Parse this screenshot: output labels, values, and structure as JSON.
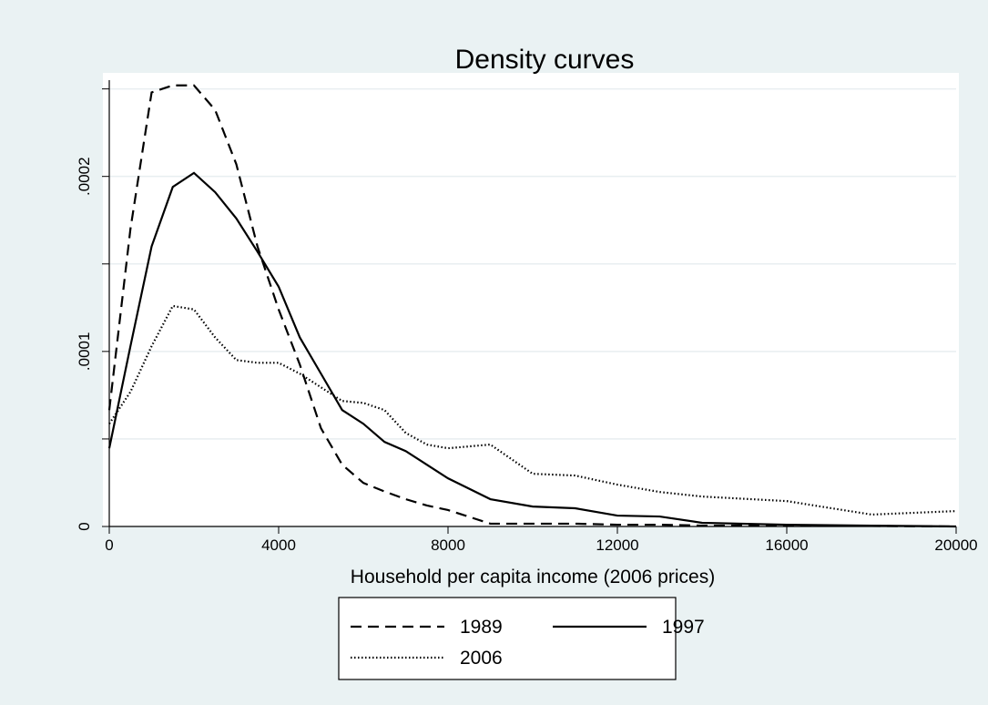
{
  "chart_data": {
    "type": "line",
    "title": "Density curves",
    "x_label": "Household per capita income (2006 prices)",
    "x": [
      0,
      500,
      1000,
      1500,
      2000,
      2500,
      3000,
      3500,
      4000,
      4500,
      5000,
      5500,
      6000,
      6500,
      7000,
      7500,
      8000,
      9000,
      10000,
      11000,
      12000,
      13000,
      14000,
      16000,
      18000,
      20000
    ],
    "series": [
      {
        "name": "1989",
        "color": "#000000",
        "dash": "dashed",
        "values": [
          6.65e-05,
          0.00017,
          0.000248,
          0.000252,
          0.000252,
          0.000238,
          0.000207,
          0.00016,
          0.000124,
          9.25e-05,
          5.61e-05,
          3.53e-05,
          2.49e-05,
          2e-05,
          1.56e-05,
          1.2e-05,
          9.4e-06,
          1.6e-06,
          1.6e-06,
          1.6e-06,
          1e-06,
          1e-06,
          5e-07,
          5e-07,
          3e-07,
          0
        ]
      },
      {
        "name": "1997",
        "color": "#000000",
        "dash": "solid",
        "values": [
          4.47e-05,
          0.000103,
          0.00016,
          0.000194,
          0.000202,
          0.000191,
          0.000176,
          0.000157,
          0.000137,
          0.000108,
          8.73e-05,
          6.65e-05,
          5.87e-05,
          4.83e-05,
          4.31e-05,
          3.53e-05,
          2.75e-05,
          1.56e-05,
          1.14e-05,
          1.04e-05,
          6.2e-06,
          5.7e-06,
          2.1e-06,
          1e-06,
          5e-07,
          0
        ]
      },
      {
        "name": "2006",
        "color": "#000000",
        "dash": "dotted",
        "values": [
          5.87e-05,
          7.69e-05,
          0.000103,
          0.000126,
          0.000124,
          0.000108,
          9.51e-05,
          9.35e-05,
          9.35e-05,
          8.73e-05,
          7.95e-05,
          7.17e-05,
          7.06e-05,
          6.65e-05,
          5.35e-05,
          4.68e-05,
          4.47e-05,
          4.68e-05,
          3.01e-05,
          2.91e-05,
          2.39e-05,
          1.97e-05,
          1.71e-05,
          1.45e-05,
          6.8e-06,
          8.8e-06
        ]
      }
    ],
    "xlim": [
      0,
      20000
    ],
    "xticks": [
      0,
      4000,
      8000,
      12000,
      16000,
      20000
    ],
    "ylim": [
      0,
      0.000255
    ],
    "yticks": [
      0,
      {
        "value": 0.0001,
        "label": ".0001"
      },
      {
        "value": 0.0002,
        "label": ".0002"
      }
    ],
    "yminorticks": [
      5e-05,
      0.00015,
      0.00025
    ],
    "grid": true,
    "legend": "bottom"
  }
}
